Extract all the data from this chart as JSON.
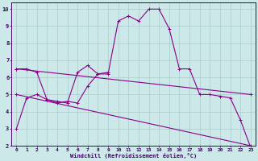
{
  "xlabel": "Windchill (Refroidissement éolien,°C)",
  "bg_color": "#cce8e8",
  "grid_color": "#aacccc",
  "line_color": "#880088",
  "xlim": [
    -0.5,
    23.5
  ],
  "ylim": [
    2,
    10.4
  ],
  "xticks": [
    0,
    1,
    2,
    3,
    4,
    5,
    6,
    7,
    8,
    9,
    10,
    11,
    12,
    13,
    14,
    15,
    16,
    17,
    18,
    19,
    20,
    21,
    22,
    23
  ],
  "yticks": [
    2,
    3,
    4,
    5,
    6,
    7,
    8,
    9,
    10
  ],
  "curve1_x": [
    0,
    1,
    2,
    3,
    4,
    5,
    6,
    7,
    8,
    9,
    10,
    11,
    12,
    13,
    14,
    15,
    16,
    17,
    18,
    19,
    20,
    21,
    22,
    23
  ],
  "curve1_y": [
    3.0,
    4.8,
    5.0,
    4.7,
    4.5,
    4.6,
    4.5,
    5.5,
    6.2,
    6.2,
    9.3,
    9.6,
    9.3,
    10.0,
    10.0,
    8.85,
    6.5,
    6.5,
    5.0,
    5.0,
    4.9,
    4.8,
    3.5,
    1.9
  ],
  "curve2_x": [
    0,
    1,
    2,
    3,
    4,
    5,
    6,
    7,
    8,
    9
  ],
  "curve2_y": [
    6.5,
    6.5,
    6.3,
    4.7,
    4.6,
    4.5,
    6.3,
    6.7,
    6.2,
    6.3
  ],
  "trend1_x": [
    0,
    23
  ],
  "trend1_y": [
    6.5,
    5.0
  ],
  "trend2_x": [
    0,
    23
  ],
  "trend2_y": [
    5.0,
    2.0
  ]
}
